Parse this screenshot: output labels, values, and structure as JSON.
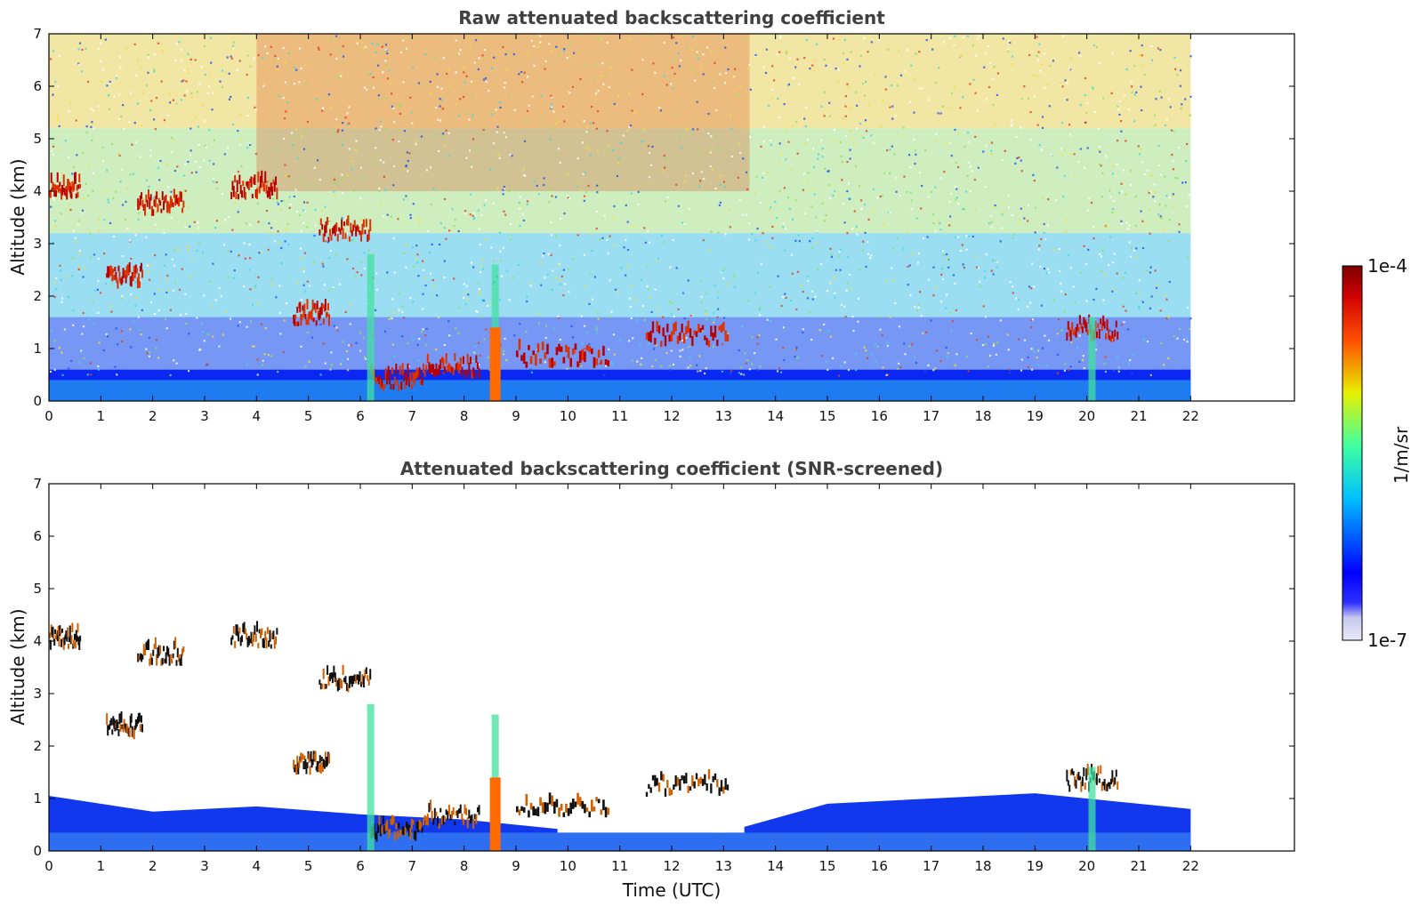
{
  "chart_data": [
    {
      "type": "heatmap",
      "title": "Raw attenuated backscattering coefficient",
      "xlabel": "",
      "ylabel": "Altitude (km)",
      "xlim": [
        0,
        24
      ],
      "ylim": [
        0,
        7
      ],
      "data_x_range": [
        0,
        22
      ],
      "xticks": [
        "0",
        "1",
        "2",
        "3",
        "4",
        "5",
        "6",
        "7",
        "8",
        "9",
        "10",
        "11",
        "12",
        "13",
        "14",
        "15",
        "16",
        "17",
        "18",
        "19",
        "20",
        "21",
        "22"
      ],
      "yticks": [
        "0",
        "1",
        "2",
        "3",
        "4",
        "5",
        "6",
        "7"
      ],
      "grid": false,
      "features": {
        "boundary_layer_top_km": 0.5,
        "cloud_layers": [
          {
            "t0": 0.0,
            "t1": 0.6,
            "alt_km": 4.0
          },
          {
            "t0": 1.1,
            "t1": 1.8,
            "alt_km": 2.3
          },
          {
            "t0": 1.7,
            "t1": 2.6,
            "alt_km": 3.7
          },
          {
            "t0": 3.5,
            "t1": 4.4,
            "alt_km": 4.0
          },
          {
            "t0": 4.7,
            "t1": 5.4,
            "alt_km": 1.6
          },
          {
            "t0": 5.2,
            "t1": 6.2,
            "alt_km": 3.2
          },
          {
            "t0": 6.2,
            "t1": 7.2,
            "alt_km": 0.35
          },
          {
            "t0": 7.2,
            "t1": 8.3,
            "alt_km": 0.6
          },
          {
            "t0": 9.0,
            "t1": 10.8,
            "alt_km": 0.8
          },
          {
            "t0": 11.5,
            "t1": 13.1,
            "alt_km": 1.2
          },
          {
            "t0": 19.6,
            "t1": 20.6,
            "alt_km": 1.3
          }
        ],
        "rain_shafts_utc": [
          6.2,
          8.6,
          20.1
        ]
      }
    },
    {
      "type": "heatmap",
      "title": "Attenuated backscattering coefficient (SNR-screened)",
      "xlabel": "Time (UTC)",
      "ylabel": "Altitude (km)",
      "xlim": [
        0,
        24
      ],
      "ylim": [
        0,
        7
      ],
      "data_x_range": [
        0,
        22
      ],
      "xticks": [
        "0",
        "1",
        "2",
        "3",
        "4",
        "5",
        "6",
        "7",
        "8",
        "9",
        "10",
        "11",
        "12",
        "13",
        "14",
        "15",
        "16",
        "17",
        "18",
        "19",
        "20",
        "21",
        "22"
      ],
      "yticks": [
        "0",
        "1",
        "2",
        "3",
        "4",
        "5",
        "6",
        "7"
      ],
      "grid": false,
      "features": {
        "boundary_layer_top_km_profile": [
          {
            "t": 0,
            "alt_km": 1.05
          },
          {
            "t": 2,
            "alt_km": 0.75
          },
          {
            "t": 4,
            "alt_km": 0.85
          },
          {
            "t": 6,
            "alt_km": 0.7
          },
          {
            "t": 8,
            "alt_km": 0.6
          },
          {
            "t": 10,
            "alt_km": 0.4
          },
          {
            "t": 13,
            "alt_km": 0.35
          },
          {
            "t": 15,
            "alt_km": 0.9
          },
          {
            "t": 17,
            "alt_km": 1.0
          },
          {
            "t": 19,
            "alt_km": 1.1
          },
          {
            "t": 21,
            "alt_km": 0.9
          },
          {
            "t": 22,
            "alt_km": 0.8
          }
        ]
      }
    }
  ],
  "colorbar": {
    "label": "1/m/sr",
    "max_label": "1e-4",
    "min_label": "1e-7",
    "scale": "log",
    "colormap": "jet",
    "colors": [
      "#e8e8f8",
      "#0000ff",
      "#00c8ff",
      "#40ff90",
      "#e6e600",
      "#ff5000",
      "#8b0000"
    ]
  }
}
